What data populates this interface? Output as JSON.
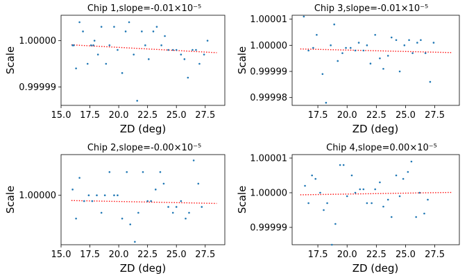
{
  "chart_data": [
    {
      "type": "scatter",
      "title": "Chip 1,slope=-0.01×10⁻⁵",
      "xlabel": "ZD (deg)",
      "ylabel": "Scale",
      "xlim": [
        15.0,
        29.2
      ],
      "ylim": [
        0.999986,
        1.0000055
      ],
      "xticks": [
        15.0,
        17.5,
        20.0,
        22.5,
        25.0,
        27.5
      ],
      "xtick_labels": [
        "15.0",
        "17.5",
        "20.0",
        "22.5",
        "25.0",
        "27.5"
      ],
      "yticks": [
        0.99999,
        1.0
      ],
      "ytick_labels": [
        "0.99999",
        "1.00000"
      ],
      "fit_line": {
        "x": [
          15.9,
          28.5
        ],
        "y": [
          0.9999991,
          0.9999974
        ]
      },
      "points": [
        {
          "x": 16.0,
          "y": 0.999999
        },
        {
          "x": 16.3,
          "y": 0.999994
        },
        {
          "x": 16.6,
          "y": 1.000004
        },
        {
          "x": 16.9,
          "y": 1.000002
        },
        {
          "x": 17.3,
          "y": 0.999995
        },
        {
          "x": 17.6,
          "y": 0.999999
        },
        {
          "x": 17.9,
          "y": 1.0
        },
        {
          "x": 18.2,
          "y": 0.999997
        },
        {
          "x": 18.5,
          "y": 1.000003
        },
        {
          "x": 18.9,
          "y": 0.999995
        },
        {
          "x": 19.2,
          "y": 0.999999
        },
        {
          "x": 19.6,
          "y": 1.000003
        },
        {
          "x": 19.9,
          "y": 0.999998
        },
        {
          "x": 20.3,
          "y": 0.999993
        },
        {
          "x": 20.6,
          "y": 1.000002
        },
        {
          "x": 20.9,
          "y": 1.000004
        },
        {
          "x": 21.3,
          "y": 0.999997
        },
        {
          "x": 21.6,
          "y": 0.999987
        },
        {
          "x": 22.0,
          "y": 1.000002
        },
        {
          "x": 22.3,
          "y": 0.999999
        },
        {
          "x": 22.6,
          "y": 0.999996
        },
        {
          "x": 23.0,
          "y": 1.000002
        },
        {
          "x": 23.3,
          "y": 1.000003
        },
        {
          "x": 23.7,
          "y": 0.999999
        },
        {
          "x": 24.0,
          "y": 1.000001
        },
        {
          "x": 24.3,
          "y": 0.999998
        },
        {
          "x": 24.7,
          "y": 0.999998
        },
        {
          "x": 25.0,
          "y": 0.999998
        },
        {
          "x": 25.4,
          "y": 0.999997
        },
        {
          "x": 25.7,
          "y": 0.999996
        },
        {
          "x": 26.0,
          "y": 0.999992
        },
        {
          "x": 26.4,
          "y": 0.999998
        },
        {
          "x": 26.7,
          "y": 0.999998
        },
        {
          "x": 27.0,
          "y": 0.999995
        },
        {
          "x": 27.4,
          "y": 0.999997
        },
        {
          "x": 27.7,
          "y": 1.0
        },
        {
          "x": 16.1,
          "y": 0.999999
        },
        {
          "x": 17.8,
          "y": 0.999999
        }
      ]
    },
    {
      "type": "scatter",
      "title": "Chip 3,slope=-0.01×10⁻⁵",
      "xlabel": "ZD (deg)",
      "ylabel": "Scale",
      "xlim": [
        15.3,
        29.6
      ],
      "ylim": [
        0.999977,
        1.0000115
      ],
      "xticks": [
        17.5,
        20.0,
        22.5,
        25.0,
        27.5
      ],
      "xtick_labels": [
        "17.5",
        "20.0",
        "22.5",
        "25.0",
        "27.5"
      ],
      "yticks": [
        0.99998,
        0.99999,
        1.0,
        1.00001
      ],
      "ytick_labels": [
        "0.99998",
        "0.99999",
        "1.00000",
        "1.00001"
      ],
      "fit_line": {
        "x": [
          16.0,
          29.0
        ],
        "y": [
          0.9999986,
          0.9999972
        ]
      },
      "points": [
        {
          "x": 16.3,
          "y": 1.000011
        },
        {
          "x": 16.7,
          "y": 0.999998
        },
        {
          "x": 17.1,
          "y": 0.999999
        },
        {
          "x": 17.4,
          "y": 1.000004
        },
        {
          "x": 17.9,
          "y": 0.999989
        },
        {
          "x": 18.2,
          "y": 0.999978
        },
        {
          "x": 18.6,
          "y": 1.0
        },
        {
          "x": 18.9,
          "y": 1.000008
        },
        {
          "x": 19.2,
          "y": 0.999994
        },
        {
          "x": 19.6,
          "y": 0.999997
        },
        {
          "x": 19.9,
          "y": 0.999999
        },
        {
          "x": 20.3,
          "y": 0.999999
        },
        {
          "x": 20.7,
          "y": 0.999998
        },
        {
          "x": 21.0,
          "y": 1.000001
        },
        {
          "x": 21.4,
          "y": 0.999998
        },
        {
          "x": 21.7,
          "y": 1.0
        },
        {
          "x": 22.0,
          "y": 0.999993
        },
        {
          "x": 22.4,
          "y": 1.000004
        },
        {
          "x": 22.8,
          "y": 0.999995
        },
        {
          "x": 23.1,
          "y": 0.999991
        },
        {
          "x": 23.5,
          "y": 0.999996
        },
        {
          "x": 23.8,
          "y": 1.000003
        },
        {
          "x": 24.2,
          "y": 1.000002
        },
        {
          "x": 24.5,
          "y": 0.99999
        },
        {
          "x": 24.9,
          "y": 1.0
        },
        {
          "x": 25.3,
          "y": 1.000002
        },
        {
          "x": 25.6,
          "y": 0.999997
        },
        {
          "x": 26.0,
          "y": 1.000001
        },
        {
          "x": 26.3,
          "y": 1.000002
        },
        {
          "x": 26.7,
          "y": 0.999997
        },
        {
          "x": 27.1,
          "y": 0.999986
        },
        {
          "x": 27.4,
          "y": 1.000001
        }
      ]
    },
    {
      "type": "scatter",
      "title": "Chip 2,slope=-0.00×10⁻⁵",
      "xlabel": "ZD (deg)",
      "ylabel": "Scale",
      "xlim": [
        15.0,
        29.2
      ],
      "ylim": [
        0.9999915,
        1.000007
      ],
      "xticks": [
        15.0,
        17.5,
        20.0,
        22.5,
        25.0,
        27.5
      ],
      "xtick_labels": [
        "15.0",
        "17.5",
        "20.0",
        "22.5",
        "25.0",
        "27.5"
      ],
      "yticks": [
        1.0
      ],
      "ytick_labels": [
        "1.00000"
      ],
      "fit_line": {
        "x": [
          15.9,
          28.5
        ],
        "y": [
          0.9999991,
          0.9999986
        ]
      },
      "points": [
        {
          "x": 16.0,
          "y": 1.000001
        },
        {
          "x": 16.3,
          "y": 0.999996
        },
        {
          "x": 16.6,
          "y": 1.000003
        },
        {
          "x": 17.0,
          "y": 0.999999
        },
        {
          "x": 17.4,
          "y": 1.0
        },
        {
          "x": 17.7,
          "y": 0.999999
        },
        {
          "x": 18.1,
          "y": 1.0
        },
        {
          "x": 18.5,
          "y": 0.999997
        },
        {
          "x": 18.8,
          "y": 1.0
        },
        {
          "x": 19.2,
          "y": 1.000004
        },
        {
          "x": 19.6,
          "y": 1.0
        },
        {
          "x": 19.9,
          "y": 1.0
        },
        {
          "x": 20.3,
          "y": 0.999996
        },
        {
          "x": 20.7,
          "y": 1.000004
        },
        {
          "x": 21.0,
          "y": 0.999995
        },
        {
          "x": 21.4,
          "y": 0.999992
        },
        {
          "x": 21.7,
          "y": 0.999997
        },
        {
          "x": 22.1,
          "y": 1.000004
        },
        {
          "x": 22.5,
          "y": 0.999999
        },
        {
          "x": 22.8,
          "y": 0.999999
        },
        {
          "x": 23.2,
          "y": 1.000001
        },
        {
          "x": 23.6,
          "y": 1.000004
        },
        {
          "x": 23.9,
          "y": 1.000002
        },
        {
          "x": 24.3,
          "y": 0.999998
        },
        {
          "x": 24.7,
          "y": 0.999997
        },
        {
          "x": 25.0,
          "y": 0.999998
        },
        {
          "x": 25.4,
          "y": 0.999999
        },
        {
          "x": 25.8,
          "y": 0.999996
        },
        {
          "x": 26.1,
          "y": 0.999997
        },
        {
          "x": 26.5,
          "y": 1.000006
        },
        {
          "x": 26.9,
          "y": 1.000002
        },
        {
          "x": 27.2,
          "y": 0.999998
        }
      ]
    },
    {
      "type": "scatter",
      "title": "Chip 4,slope=0.00×10⁻⁵",
      "xlabel": "ZD (deg)",
      "ylabel": "Scale",
      "xlim": [
        15.3,
        29.6
      ],
      "ylim": [
        0.999985,
        1.000011
      ],
      "xticks": [
        17.5,
        20.0,
        22.5,
        25.0,
        27.5
      ],
      "xtick_labels": [
        "17.5",
        "20.0",
        "22.5",
        "25.0",
        "27.5"
      ],
      "yticks": [
        0.99999,
        1.0,
        1.00001
      ],
      "ytick_labels": [
        "0.99999",
        "1.00000",
        "1.00001"
      ],
      "fit_line": {
        "x": [
          16.0,
          29.0
        ],
        "y": [
          0.9999994,
          1.0000001
        ]
      },
      "points": [
        {
          "x": 16.4,
          "y": 1.000002
        },
        {
          "x": 16.7,
          "y": 0.999997
        },
        {
          "x": 17.0,
          "y": 1.000005
        },
        {
          "x": 17.3,
          "y": 1.000004
        },
        {
          "x": 17.7,
          "y": 1.0
        },
        {
          "x": 18.0,
          "y": 0.999995
        },
        {
          "x": 18.3,
          "y": 0.999997
        },
        {
          "x": 18.7,
          "y": 0.999985
        },
        {
          "x": 19.0,
          "y": 0.999991
        },
        {
          "x": 19.4,
          "y": 1.000008
        },
        {
          "x": 19.7,
          "y": 1.000008
        },
        {
          "x": 20.0,
          "y": 0.999999
        },
        {
          "x": 20.4,
          "y": 1.000005
        },
        {
          "x": 20.7,
          "y": 1.0
        },
        {
          "x": 21.1,
          "y": 1.000001
        },
        {
          "x": 21.4,
          "y": 1.000001
        },
        {
          "x": 21.7,
          "y": 0.999997
        },
        {
          "x": 22.1,
          "y": 0.999997
        },
        {
          "x": 22.4,
          "y": 1.000001
        },
        {
          "x": 22.8,
          "y": 1.000003
        },
        {
          "x": 23.1,
          "y": 0.999996
        },
        {
          "x": 23.5,
          "y": 0.999998
        },
        {
          "x": 23.8,
          "y": 0.999993
        },
        {
          "x": 24.2,
          "y": 1.000005
        },
        {
          "x": 24.5,
          "y": 0.999999
        },
        {
          "x": 24.8,
          "y": 1.000004
        },
        {
          "x": 25.2,
          "y": 1.000006
        },
        {
          "x": 25.5,
          "y": 1.000009
        },
        {
          "x": 25.9,
          "y": 0.999993
        },
        {
          "x": 26.2,
          "y": 1.0
        },
        {
          "x": 26.6,
          "y": 0.999994
        },
        {
          "x": 26.9,
          "y": 0.999998
        }
      ]
    }
  ]
}
